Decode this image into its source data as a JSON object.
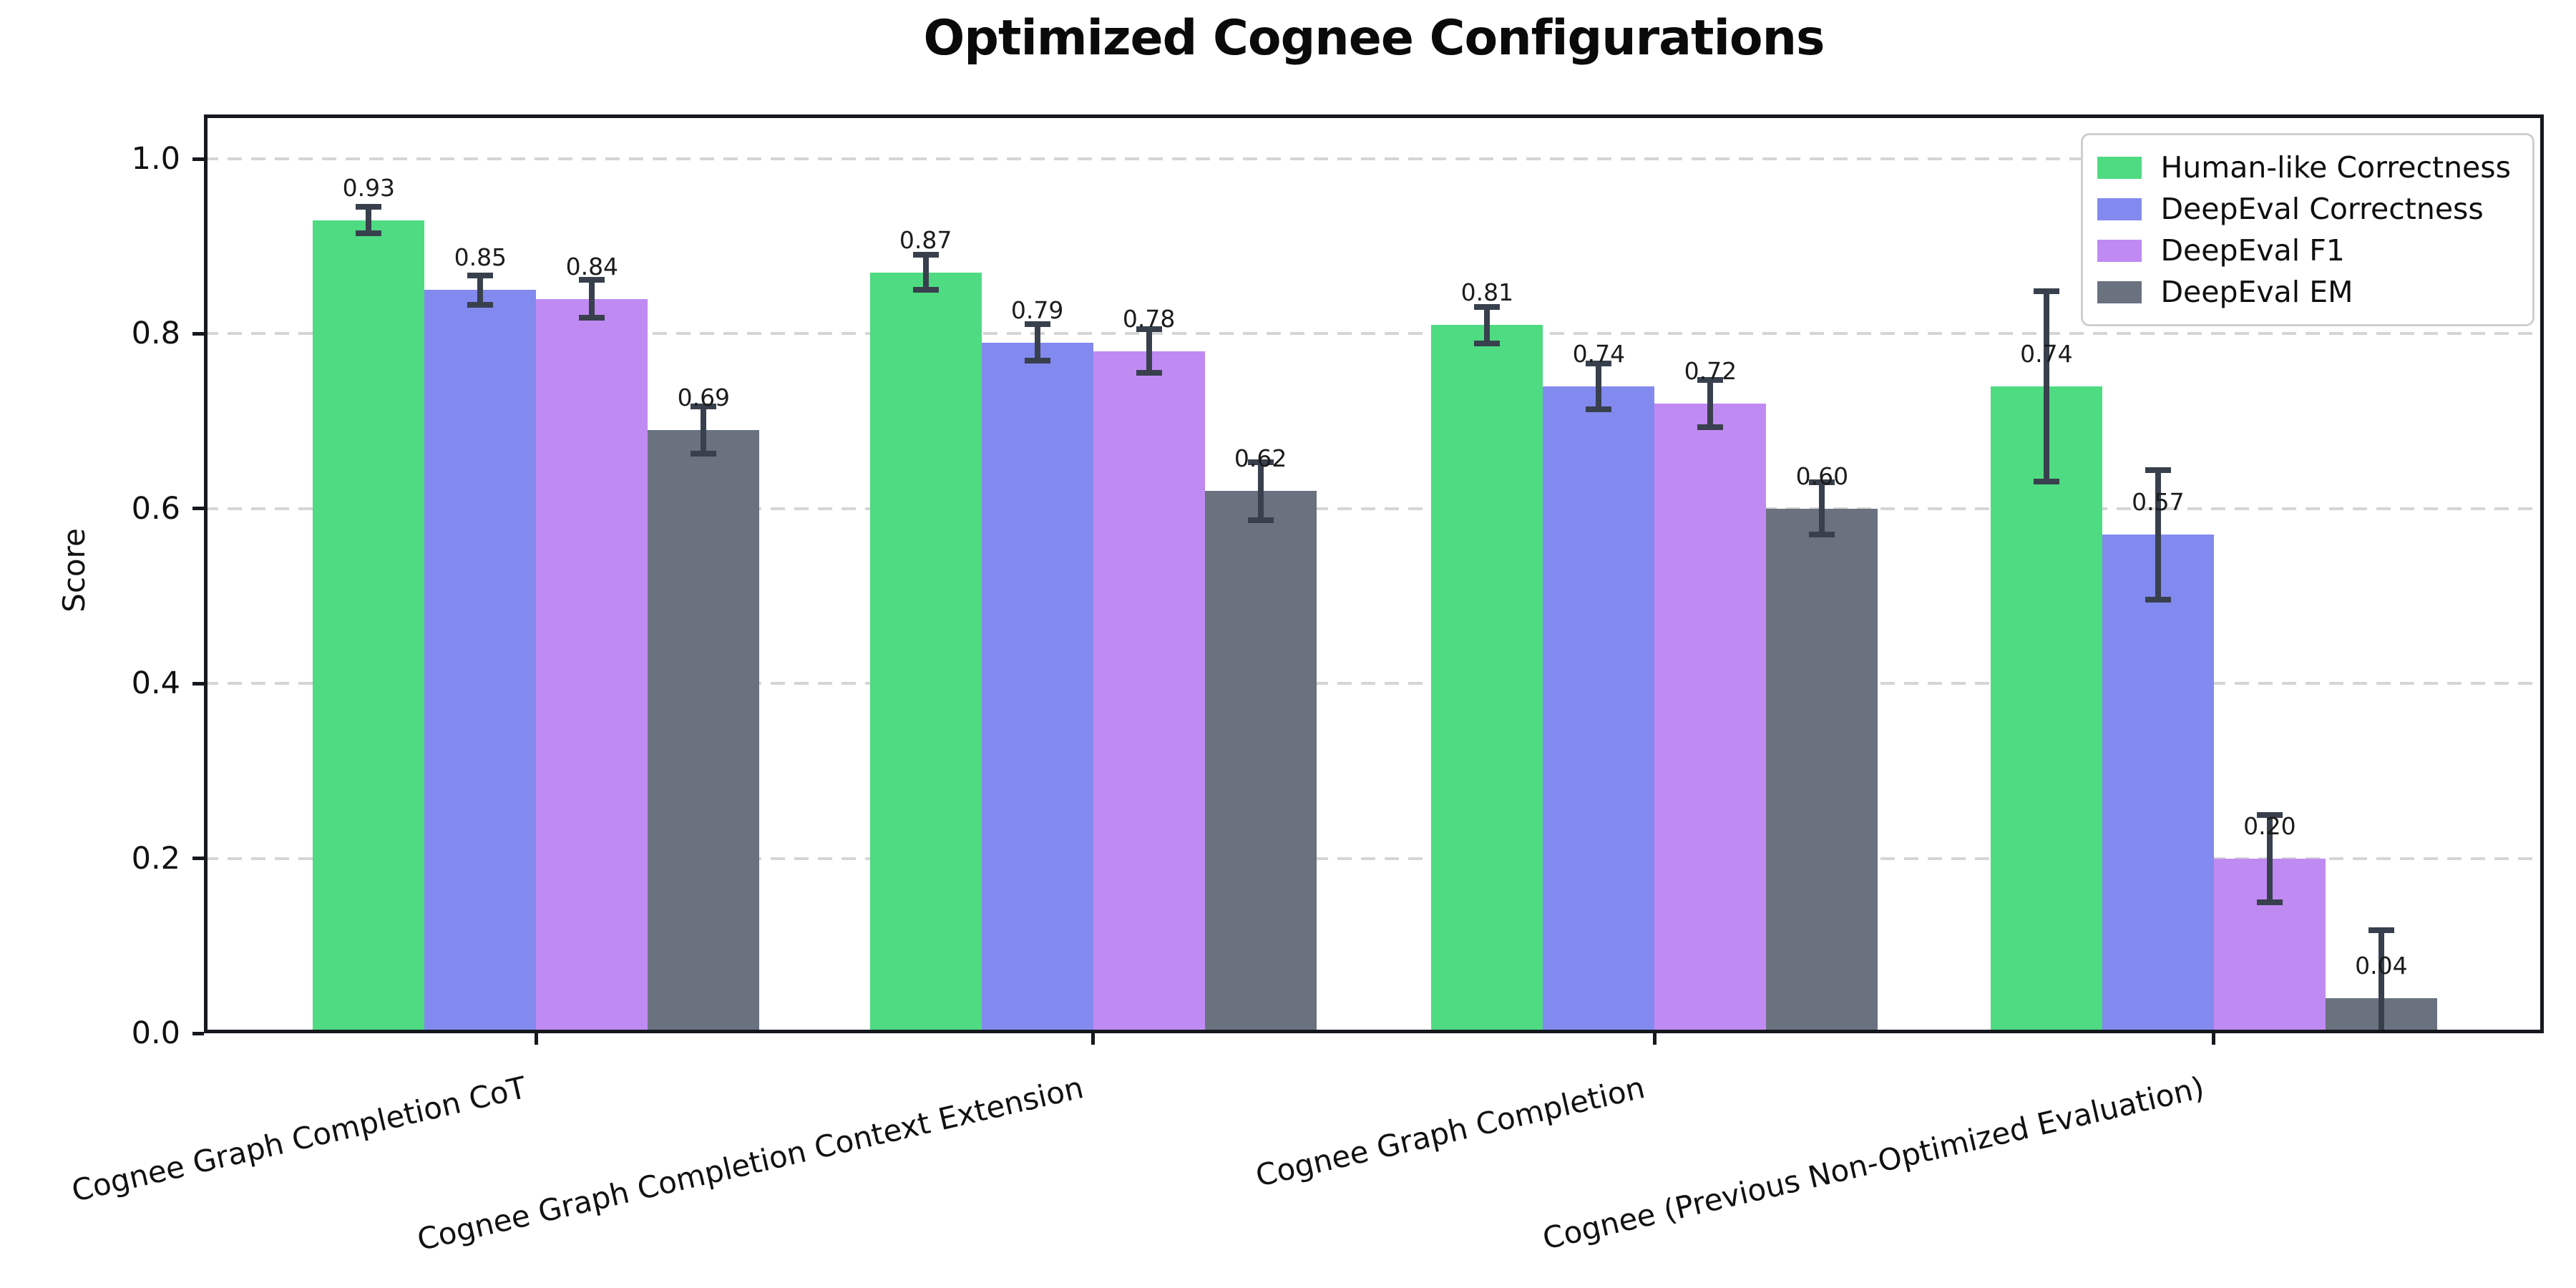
{
  "title": "Optimized Cognee Configurations",
  "chart_data": {
    "type": "bar",
    "title": "Optimized Cognee Configurations",
    "xlabel": "",
    "ylabel": "Score",
    "ylim": [
      0,
      1.05
    ],
    "yticks": [
      "0.0",
      "0.2",
      "0.4",
      "0.6",
      "0.8",
      "1.0"
    ],
    "grid": "horizontal-dashed",
    "grid_color": "#d5d5d5",
    "error_bar_color": "#38404d",
    "legend_position": "upper-right",
    "categories": [
      "Cognee Graph Completion CoT",
      "Cognee Graph Completion Context Extension",
      "Cognee Graph Completion",
      "Cognee (Previous Non-Optimized Evaluation)"
    ],
    "series": [
      {
        "name": "Human-like Correctness",
        "color": "#4fdb82",
        "values": [
          0.93,
          0.87,
          0.81,
          0.74
        ],
        "errors": [
          0.015,
          0.02,
          0.021,
          0.109
        ]
      },
      {
        "name": "DeepEval Correctness",
        "color": "#8289ef",
        "values": [
          0.85,
          0.79,
          0.74,
          0.57
        ],
        "errors": [
          0.017,
          0.021,
          0.026,
          0.074
        ]
      },
      {
        "name": "DeepEval F1",
        "color": "#c08af3",
        "values": [
          0.84,
          0.78,
          0.72,
          0.2
        ],
        "errors": [
          0.022,
          0.025,
          0.027,
          0.05
        ]
      },
      {
        "name": "DeepEval EM",
        "color": "#6a7280",
        "values": [
          0.69,
          0.62,
          0.6,
          0.04
        ],
        "errors": [
          0.027,
          0.033,
          0.03,
          0.078
        ]
      }
    ]
  }
}
